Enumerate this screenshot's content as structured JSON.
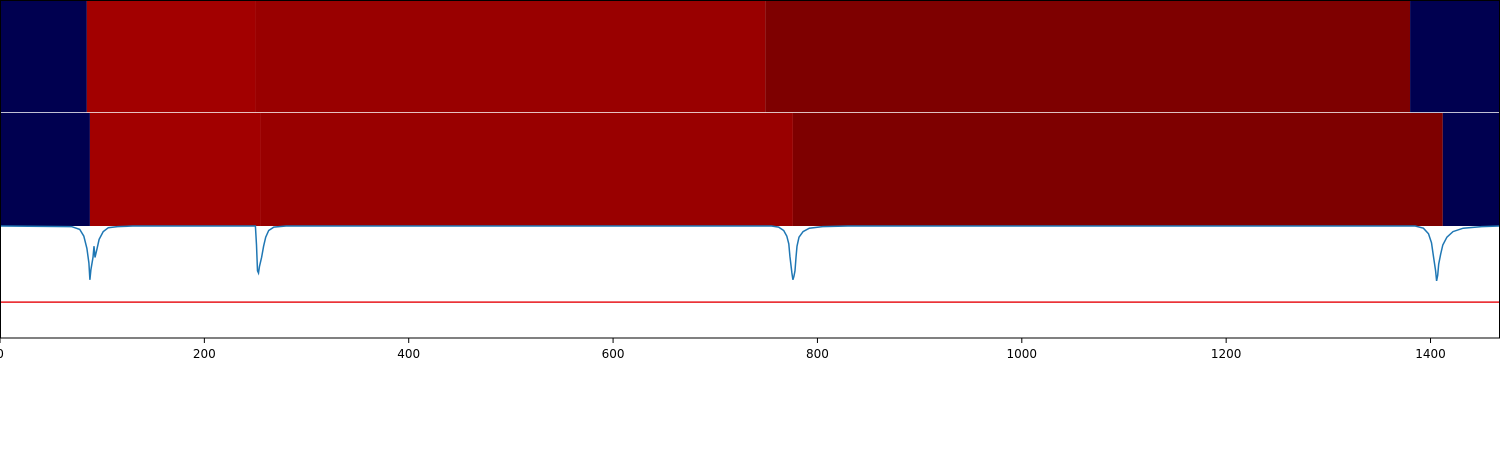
{
  "chart_data": {
    "type": "heatmap",
    "xlim": [
      0,
      1468
    ],
    "xticks": [
      0,
      200,
      400,
      600,
      800,
      1000,
      1200,
      1400
    ],
    "tick_labels": [
      "0",
      "200",
      "400",
      "600",
      "800",
      "1000",
      "1200",
      "1400"
    ],
    "colors": {
      "background": "#000050",
      "segment_1": "#a20000",
      "segment_2": "#990000",
      "segment_3": "#7e0000",
      "curve": "#1f77b4",
      "threshold": "#e8161c",
      "separator": "#ffffff"
    },
    "rows": [
      {
        "segments": [
          {
            "start": 0,
            "end": 85,
            "color": "background"
          },
          {
            "start": 85,
            "end": 250,
            "color": "segment_1"
          },
          {
            "start": 250,
            "end": 749,
            "color": "segment_2"
          },
          {
            "start": 749,
            "end": 1380,
            "color": "segment_3"
          },
          {
            "start": 1380,
            "end": 1468,
            "color": "background"
          }
        ]
      },
      {
        "segments": [
          {
            "start": 0,
            "end": 88,
            "color": "background"
          },
          {
            "start": 88,
            "end": 255,
            "color": "segment_1"
          },
          {
            "start": 255,
            "end": 776,
            "color": "segment_2"
          },
          {
            "start": 776,
            "end": 1412,
            "color": "segment_3"
          },
          {
            "start": 1412,
            "end": 1468,
            "color": "background"
          }
        ]
      }
    ],
    "signal": {
      "ylim": [
        0,
        1
      ],
      "threshold": 0.32,
      "points": [
        [
          0,
          1.0
        ],
        [
          70,
          0.995
        ],
        [
          78,
          0.97
        ],
        [
          82,
          0.91
        ],
        [
          85,
          0.8
        ],
        [
          87,
          0.67
        ],
        [
          88,
          0.52
        ],
        [
          89,
          0.61
        ],
        [
          91,
          0.72
        ],
        [
          92,
          0.82
        ],
        [
          93,
          0.72
        ],
        [
          95,
          0.8
        ],
        [
          97,
          0.88
        ],
        [
          101,
          0.95
        ],
        [
          106,
          0.985
        ],
        [
          115,
          0.995
        ],
        [
          130,
          1.0
        ],
        [
          245,
          1.0
        ],
        [
          250,
          1.0
        ],
        [
          251,
          0.83
        ],
        [
          252,
          0.6
        ],
        [
          253,
          0.58
        ],
        [
          254,
          0.64
        ],
        [
          256,
          0.72
        ],
        [
          258,
          0.82
        ],
        [
          260,
          0.9
        ],
        [
          263,
          0.96
        ],
        [
          268,
          0.99
        ],
        [
          280,
          1.0
        ],
        [
          755,
          1.0
        ],
        [
          762,
          0.99
        ],
        [
          767,
          0.96
        ],
        [
          770,
          0.91
        ],
        [
          772,
          0.84
        ],
        [
          773,
          0.73
        ],
        [
          775,
          0.58
        ],
        [
          776,
          0.52
        ],
        [
          777,
          0.55
        ],
        [
          778,
          0.6
        ],
        [
          779,
          0.72
        ],
        [
          780,
          0.82
        ],
        [
          782,
          0.9
        ],
        [
          786,
          0.95
        ],
        [
          792,
          0.98
        ],
        [
          805,
          0.995
        ],
        [
          830,
          1.0
        ],
        [
          1385,
          1.0
        ],
        [
          1393,
          0.98
        ],
        [
          1398,
          0.93
        ],
        [
          1401,
          0.85
        ],
        [
          1403,
          0.72
        ],
        [
          1405,
          0.6
        ],
        [
          1406,
          0.51
        ],
        [
          1407,
          0.56
        ],
        [
          1408,
          0.66
        ],
        [
          1410,
          0.75
        ],
        [
          1412,
          0.83
        ],
        [
          1416,
          0.9
        ],
        [
          1422,
          0.95
        ],
        [
          1432,
          0.98
        ],
        [
          1450,
          0.995
        ],
        [
          1468,
          1.0
        ]
      ]
    }
  }
}
